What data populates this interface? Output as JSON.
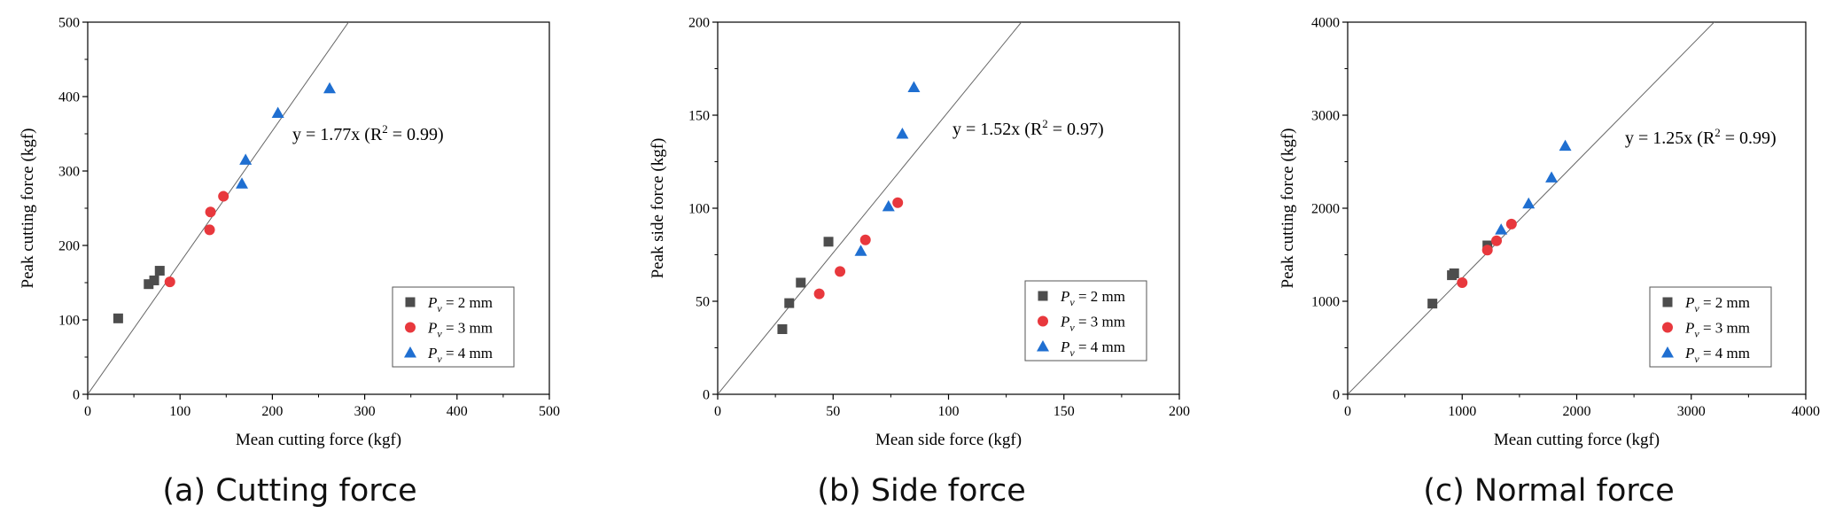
{
  "colors": {
    "series2": "#4d4d4d",
    "series3": "#e8383d",
    "series4": "#1f6fd1",
    "fitLine": "#666666"
  },
  "chart_data": [
    {
      "type": "scatter",
      "caption": "(a) Cutting force",
      "xlabel": "Mean cutting force (kgf)",
      "ylabel": "Peak cutting force (kgf)",
      "xlim": [
        0,
        500
      ],
      "ylim": [
        0,
        500
      ],
      "xticks": [
        0,
        100,
        200,
        300,
        400,
        500
      ],
      "yticks": [
        0,
        100,
        200,
        300,
        400,
        500
      ],
      "fit": {
        "slope": 1.77,
        "annotation_prefix": "y = 1.77x (R",
        "annotation_sup": "2",
        "annotation_suffix": " = 0.99)"
      },
      "series": [
        {
          "name": "2 mm",
          "legend_var": "P",
          "legend_sub": "v",
          "legend_eq": " = 2 mm",
          "marker": "square",
          "color": "#4d4d4d",
          "points": [
            [
              33,
              102
            ],
            [
              66,
              148
            ],
            [
              72,
              153
            ],
            [
              78,
              166
            ]
          ]
        },
        {
          "name": "3 mm",
          "legend_var": "P",
          "legend_sub": "v",
          "legend_eq": " = 3 mm",
          "marker": "circle",
          "color": "#e8383d",
          "points": [
            [
              89,
              151
            ],
            [
              132,
              221
            ],
            [
              133,
              245
            ],
            [
              147,
              266
            ]
          ]
        },
        {
          "name": "4 mm",
          "legend_var": "P",
          "legend_sub": "v",
          "legend_eq": " = 4 mm",
          "marker": "triangle",
          "color": "#1f6fd1",
          "points": [
            [
              167,
              283
            ],
            [
              171,
              315
            ],
            [
              206,
              378
            ],
            [
              262,
              411
            ]
          ]
        }
      ]
    },
    {
      "type": "scatter",
      "caption": "(b) Side force",
      "xlabel": "Mean side force (kgf)",
      "ylabel": "Peak side force (kgf)",
      "xlim": [
        0,
        200
      ],
      "ylim": [
        0,
        200
      ],
      "xticks": [
        0,
        50,
        100,
        150,
        200
      ],
      "yticks": [
        0,
        50,
        100,
        150,
        200
      ],
      "fit": {
        "slope": 1.52,
        "annotation_prefix": "y = 1.52x (R",
        "annotation_sup": "2",
        "annotation_suffix": " = 0.97)"
      },
      "series": [
        {
          "name": "2 mm",
          "legend_var": "P",
          "legend_sub": "v",
          "legend_eq": " = 2 mm",
          "marker": "square",
          "color": "#4d4d4d",
          "points": [
            [
              28,
              35
            ],
            [
              31,
              49
            ],
            [
              36,
              60
            ],
            [
              48,
              82
            ]
          ]
        },
        {
          "name": "3 mm",
          "legend_var": "P",
          "legend_sub": "v",
          "legend_eq": " = 3 mm",
          "marker": "circle",
          "color": "#e8383d",
          "points": [
            [
              44,
              54
            ],
            [
              53,
              66
            ],
            [
              64,
              83
            ],
            [
              78,
              103
            ]
          ]
        },
        {
          "name": "4 mm",
          "legend_var": "P",
          "legend_sub": "v",
          "legend_eq": " = 4 mm",
          "marker": "triangle",
          "color": "#1f6fd1",
          "points": [
            [
              62,
              77
            ],
            [
              74,
              101
            ],
            [
              80,
              140
            ],
            [
              85,
              165
            ]
          ]
        }
      ]
    },
    {
      "type": "scatter",
      "caption": "(c) Normal force",
      "xlabel": "Mean cutting force (kgf)",
      "ylabel": "Peak cutting force (kgf)",
      "xlim": [
        0,
        4000
      ],
      "ylim": [
        0,
        4000
      ],
      "xticks": [
        0,
        1000,
        2000,
        3000,
        4000
      ],
      "yticks": [
        0,
        1000,
        2000,
        3000,
        4000
      ],
      "fit": {
        "slope": 1.25,
        "annotation_prefix": "y = 1.25x (R",
        "annotation_sup": "2",
        "annotation_suffix": " = 0.99)"
      },
      "series": [
        {
          "name": "2 mm",
          "legend_var": "P",
          "legend_sub": "v",
          "legend_eq": " = 2 mm",
          "marker": "square",
          "color": "#4d4d4d",
          "points": [
            [
              740,
              975
            ],
            [
              910,
              1280
            ],
            [
              930,
              1300
            ],
            [
              1220,
              1600
            ]
          ]
        },
        {
          "name": "3 mm",
          "legend_var": "P",
          "legend_sub": "v",
          "legend_eq": " = 3 mm",
          "marker": "circle",
          "color": "#e8383d",
          "points": [
            [
              1000,
              1200
            ],
            [
              1220,
              1550
            ],
            [
              1300,
              1650
            ],
            [
              1430,
              1830
            ]
          ]
        },
        {
          "name": "4 mm",
          "legend_var": "P",
          "legend_sub": "v",
          "legend_eq": " = 4 mm",
          "marker": "triangle",
          "color": "#1f6fd1",
          "points": [
            [
              1340,
              1770
            ],
            [
              1580,
              2050
            ],
            [
              1780,
              2330
            ],
            [
              1900,
              2670
            ]
          ]
        }
      ]
    }
  ]
}
